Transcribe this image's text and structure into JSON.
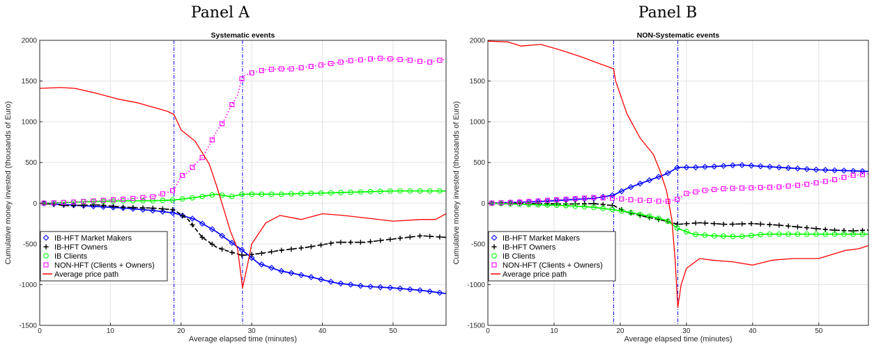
{
  "panels": [
    {
      "heading": "Panel A"
    },
    {
      "heading": "Panel B"
    }
  ],
  "chart_data": [
    {
      "type": "line",
      "title": "Systematic events",
      "xlabel": "Average elapsed time (minutes)",
      "ylabel": "Cumulative money invested (thousands of Euro)",
      "xlim": [
        0,
        57.5
      ],
      "ylim": [
        -1500,
        2000
      ],
      "xticks": [
        0,
        10,
        20,
        30,
        40,
        50
      ],
      "yticks": [
        -1500,
        -1000,
        -500,
        0,
        500,
        1000,
        1500,
        2000
      ],
      "grid": true,
      "legend_position": "bottom-left",
      "vlines": [
        19,
        28.7
      ],
      "series": [
        {
          "name": "IB-HFT Market Makers",
          "color": "#0000ff",
          "marker": "diamond",
          "dash": "solid",
          "x": [
            0,
            4,
            8,
            12,
            16,
            19,
            22,
            25,
            28.7,
            31,
            34,
            38,
            42,
            46,
            50,
            54,
            57.5
          ],
          "y": [
            0,
            -20,
            -40,
            -60,
            -90,
            -120,
            -200,
            -350,
            -580,
            -740,
            -830,
            -900,
            -980,
            -1020,
            -1040,
            -1070,
            -1110
          ]
        },
        {
          "name": "IB-HFT  Owners",
          "color": "#000000",
          "marker": "plus",
          "dash": "dashed",
          "x": [
            0,
            4,
            8,
            12,
            16,
            19,
            21,
            23,
            25,
            27,
            28.7,
            31,
            34,
            38,
            42,
            46,
            50,
            54,
            57.5
          ],
          "y": [
            0,
            -30,
            -20,
            -50,
            -60,
            -80,
            -200,
            -420,
            -540,
            -600,
            -640,
            -620,
            -580,
            -540,
            -480,
            -480,
            -440,
            -400,
            -420
          ]
        },
        {
          "name": "IB Clients",
          "color": "#00ff00",
          "marker": "circle",
          "dash": "solid",
          "x": [
            0,
            4,
            8,
            12,
            16,
            19,
            22,
            25,
            27,
            28.7,
            31,
            34,
            38,
            42,
            46,
            50,
            54,
            57.5
          ],
          "y": [
            0,
            10,
            20,
            30,
            30,
            40,
            70,
            110,
            80,
            110,
            110,
            110,
            120,
            130,
            140,
            150,
            150,
            150
          ]
        },
        {
          "name": "NON-HFT (Clients + Owners)",
          "color": "#ff00ff",
          "marker": "square",
          "dash": "dotted",
          "x": [
            0,
            4,
            8,
            12,
            16,
            18,
            19,
            20,
            21,
            22,
            23,
            24,
            25,
            26,
            27,
            28,
            28.7,
            30,
            32,
            34,
            36,
            40,
            44,
            48,
            52,
            55,
            57.5
          ],
          "y": [
            0,
            10,
            30,
            50,
            80,
            130,
            160,
            330,
            380,
            480,
            560,
            710,
            880,
            1000,
            1180,
            1330,
            1560,
            1600,
            1640,
            1650,
            1650,
            1700,
            1750,
            1780,
            1760,
            1730,
            1770
          ]
        },
        {
          "name": "Average price path",
          "color": "#ff0000",
          "marker": "none",
          "dash": "solid",
          "x": [
            0,
            3,
            5,
            8,
            11,
            14,
            16,
            18,
            19,
            20,
            22,
            24,
            25,
            26,
            27,
            28,
            28.7,
            29.3,
            30,
            32,
            34,
            37,
            40,
            43,
            46,
            50,
            54,
            56,
            57.5
          ],
          "y": [
            1410,
            1420,
            1410,
            1350,
            1280,
            1230,
            1180,
            1130,
            1090,
            900,
            760,
            480,
            220,
            -60,
            -350,
            -560,
            -1040,
            -800,
            -500,
            -240,
            -150,
            -200,
            -130,
            -150,
            -180,
            -220,
            -200,
            -200,
            -130
          ]
        }
      ]
    },
    {
      "type": "line",
      "title": "NON-Systematic events",
      "xlabel": "Average elapsed time (minutes)",
      "ylabel": "Cumulative money invested (thousands of Euro)",
      "xlim": [
        0,
        57.5
      ],
      "ylim": [
        -1500,
        2000
      ],
      "xticks": [
        0,
        10,
        20,
        30,
        40,
        50
      ],
      "yticks": [
        -1500,
        -1000,
        -500,
        0,
        500,
        1000,
        1500,
        2000
      ],
      "grid": true,
      "legend_position": "bottom-left",
      "vlines": [
        19,
        28.7
      ],
      "series": [
        {
          "name": "IB-HFT Market Makers",
          "color": "#0000ff",
          "marker": "diamond",
          "dash": "solid",
          "x": [
            0,
            4,
            8,
            12,
            16,
            19,
            21,
            24,
            27,
            28.7,
            31,
            34,
            38,
            42,
            46,
            50,
            54,
            57.5
          ],
          "y": [
            0,
            10,
            20,
            40,
            60,
            100,
            180,
            270,
            360,
            440,
            440,
            450,
            470,
            450,
            430,
            410,
            400,
            390
          ]
        },
        {
          "name": "IB-HFT  Owners",
          "color": "#000000",
          "marker": "plus",
          "dash": "dashed",
          "x": [
            0,
            4,
            8,
            12,
            16,
            19,
            21,
            24,
            27,
            28.7,
            32,
            36,
            40,
            44,
            48,
            52,
            55,
            57.5
          ],
          "y": [
            0,
            0,
            -5,
            -10,
            -5,
            -30,
            -110,
            -170,
            -220,
            -260,
            -240,
            -260,
            -250,
            -270,
            -300,
            -330,
            -340,
            -330
          ]
        },
        {
          "name": "IB Clients",
          "color": "#00ff00",
          "marker": "circle",
          "dash": "solid",
          "x": [
            0,
            4,
            8,
            12,
            16,
            19,
            22,
            25,
            27,
            28.7,
            31,
            34,
            38,
            42,
            46,
            50,
            54,
            57.5
          ],
          "y": [
            0,
            -10,
            -20,
            -30,
            -50,
            -80,
            -120,
            -170,
            -210,
            -310,
            -380,
            -400,
            -410,
            -380,
            -380,
            -380,
            -380,
            -380
          ]
        },
        {
          "name": "NON-HFT (Clients + Owners)",
          "color": "#ff00ff",
          "marker": "square",
          "dash": "dotted",
          "x": [
            0,
            4,
            8,
            12,
            16,
            19,
            22,
            25,
            27,
            28.7,
            30,
            33,
            36,
            40,
            44,
            48,
            52,
            55,
            57.5
          ],
          "y": [
            0,
            10,
            30,
            50,
            70,
            60,
            40,
            30,
            20,
            50,
            120,
            160,
            180,
            190,
            200,
            230,
            280,
            340,
            360
          ]
        },
        {
          "name": "Average price path",
          "color": "#ff0000",
          "marker": "none",
          "dash": "solid",
          "x": [
            0,
            3,
            5,
            8,
            11,
            14,
            16,
            18,
            19,
            19.3,
            21,
            23,
            25,
            26,
            27,
            27.8,
            28.3,
            28.7,
            29.2,
            30,
            32,
            34,
            37,
            40,
            43,
            46,
            50,
            54,
            56,
            57.5
          ],
          "y": [
            1990,
            1980,
            1930,
            1950,
            1880,
            1800,
            1740,
            1680,
            1650,
            1500,
            1100,
            800,
            600,
            400,
            150,
            -200,
            -700,
            -1280,
            -1000,
            -800,
            -680,
            -700,
            -720,
            -760,
            -700,
            -680,
            -680,
            -580,
            -560,
            -520
          ]
        }
      ]
    }
  ]
}
